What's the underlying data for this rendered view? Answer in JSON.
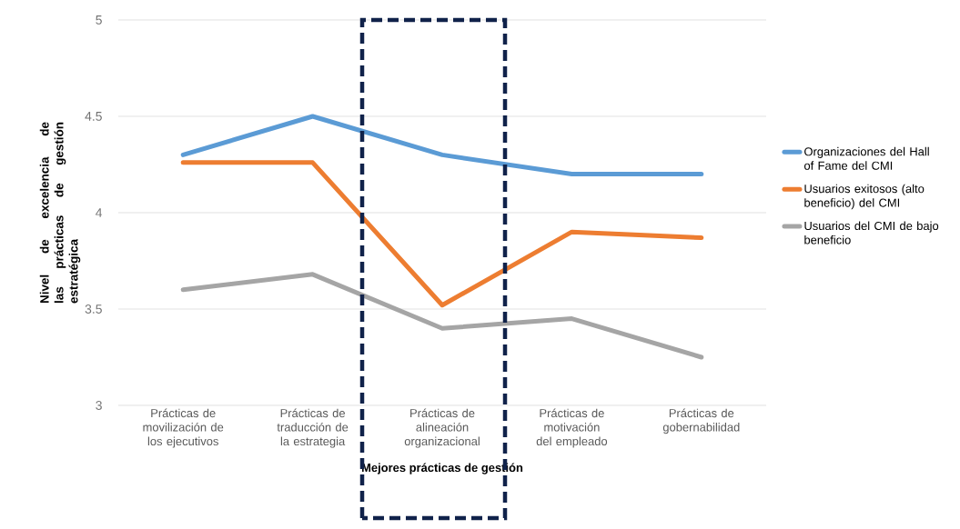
{
  "chart_data": {
    "type": "line",
    "xlabel": "Mejores prácticas de gestión",
    "ylabel": "Nivel de excelencia de las prácticas de gestión estratégica",
    "categories": [
      "Prácticas de movilización de los ejecutivos",
      "Prácticas de traducción de la estrategia",
      "Prácticas de alineación organizacional",
      "Prácticas de motivación del empleado",
      "Prácticas de gobernabilidad"
    ],
    "series": [
      {
        "name": "Organizaciones del Hall of Fame del CMI",
        "color": "#5b9bd5",
        "values": [
          4.3,
          4.5,
          4.3,
          4.2,
          4.2
        ]
      },
      {
        "name": "Usuarios exitosos (alto beneficio) del CMI",
        "color": "#ed7d31",
        "values": [
          4.26,
          4.26,
          3.52,
          3.9,
          3.87
        ]
      },
      {
        "name": "Usuarios del CMI de bajo beneficio",
        "color": "#a5a5a5",
        "values": [
          3.6,
          3.68,
          3.4,
          3.45,
          3.25
        ]
      }
    ],
    "ylim": [
      3,
      5
    ],
    "yticks": [
      3,
      3.5,
      4,
      4.5,
      5
    ],
    "grid": "y",
    "legend": "right",
    "marker": "none",
    "line_style": "solid"
  }
}
